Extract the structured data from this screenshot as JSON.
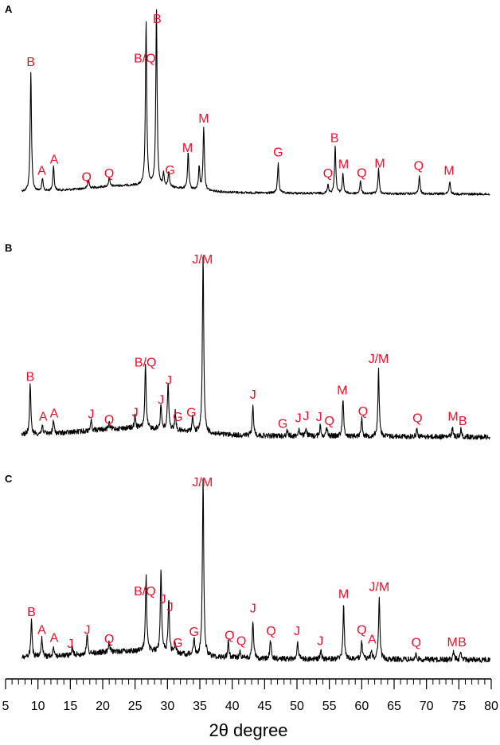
{
  "chart_data": {
    "type": "line",
    "xlabel": "2θ degree",
    "xlim": [
      5,
      80
    ],
    "x_ticks": [
      5,
      10,
      15,
      20,
      25,
      30,
      35,
      40,
      45,
      50,
      55,
      60,
      65,
      70,
      75,
      80
    ],
    "y_axis_shown": false,
    "panels": [
      {
        "panel": "A",
        "peaks": [
          {
            "x": 8.9,
            "h": 0.68
          },
          {
            "x": 10.7,
            "h": 0.07
          },
          {
            "x": 12.4,
            "h": 0.14
          },
          {
            "x": 17.8,
            "h": 0.05
          },
          {
            "x": 21.0,
            "h": 0.05
          },
          {
            "x": 26.7,
            "h": 0.93
          },
          {
            "x": 28.3,
            "h": 1.0
          },
          {
            "x": 29.4,
            "h": 0.07
          },
          {
            "x": 30.2,
            "h": 0.09
          },
          {
            "x": 33.2,
            "h": 0.21
          },
          {
            "x": 34.9,
            "h": 0.13
          },
          {
            "x": 35.6,
            "h": 0.36
          },
          {
            "x": 47.1,
            "h": 0.17
          },
          {
            "x": 54.8,
            "h": 0.05
          },
          {
            "x": 55.9,
            "h": 0.27
          },
          {
            "x": 57.1,
            "h": 0.11
          },
          {
            "x": 59.8,
            "h": 0.07
          },
          {
            "x": 62.6,
            "h": 0.14
          },
          {
            "x": 68.9,
            "h": 0.1
          },
          {
            "x": 73.6,
            "h": 0.07
          }
        ],
        "labels": [
          {
            "text": "B",
            "x": 8.9
          },
          {
            "text": "A",
            "x": 10.6
          },
          {
            "text": "A",
            "x": 12.5
          },
          {
            "text": "Q",
            "x": 17.5
          },
          {
            "text": "Q",
            "x": 21.0
          },
          {
            "text": "B/Q",
            "x": 26.5
          },
          {
            "text": "B",
            "x": 28.4
          },
          {
            "text": "G",
            "x": 30.4
          },
          {
            "text": "M",
            "x": 33.1
          },
          {
            "text": "M",
            "x": 35.6
          },
          {
            "text": "G",
            "x": 47.1
          },
          {
            "text": "B",
            "x": 55.8
          },
          {
            "text": "Q",
            "x": 54.8
          },
          {
            "text": "M",
            "x": 57.2
          },
          {
            "text": "Q",
            "x": 60.0
          },
          {
            "text": "M",
            "x": 62.8
          },
          {
            "text": "Q",
            "x": 68.8
          },
          {
            "text": "M",
            "x": 73.5
          }
        ]
      },
      {
        "panel": "B",
        "peaks": [
          {
            "x": 8.8,
            "h": 0.27
          },
          {
            "x": 10.7,
            "h": 0.05
          },
          {
            "x": 12.4,
            "h": 0.07
          },
          {
            "x": 18.2,
            "h": 0.06
          },
          {
            "x": 21.0,
            "h": 0.03
          },
          {
            "x": 25.0,
            "h": 0.07
          },
          {
            "x": 26.6,
            "h": 0.35
          },
          {
            "x": 29.0,
            "h": 0.14
          },
          {
            "x": 30.1,
            "h": 0.27
          },
          {
            "x": 31.2,
            "h": 0.1
          },
          {
            "x": 33.9,
            "h": 0.09
          },
          {
            "x": 35.5,
            "h": 1.0
          },
          {
            "x": 43.2,
            "h": 0.17
          },
          {
            "x": 48.5,
            "h": 0.03
          },
          {
            "x": 50.3,
            "h": 0.04
          },
          {
            "x": 51.4,
            "h": 0.05
          },
          {
            "x": 53.6,
            "h": 0.06
          },
          {
            "x": 54.6,
            "h": 0.05
          },
          {
            "x": 57.1,
            "h": 0.21
          },
          {
            "x": 60.0,
            "h": 0.1
          },
          {
            "x": 62.6,
            "h": 0.37
          },
          {
            "x": 68.5,
            "h": 0.04
          },
          {
            "x": 74.0,
            "h": 0.05
          },
          {
            "x": 75.3,
            "h": 0.04
          }
        ],
        "labels": [
          {
            "text": "B",
            "x": 8.8
          },
          {
            "text": "A",
            "x": 10.8
          },
          {
            "text": "A",
            "x": 12.5
          },
          {
            "text": "J",
            "x": 18.2
          },
          {
            "text": "Q",
            "x": 21.0
          },
          {
            "text": "J",
            "x": 25.0
          },
          {
            "text": "B/Q",
            "x": 26.6
          },
          {
            "text": "J",
            "x": 29.0
          },
          {
            "text": "J",
            "x": 30.2
          },
          {
            "text": "G",
            "x": 31.6
          },
          {
            "text": "G",
            "x": 33.7
          },
          {
            "text": "J/M",
            "x": 35.4
          },
          {
            "text": "J",
            "x": 43.2
          },
          {
            "text": "G",
            "x": 47.8
          },
          {
            "text": "J",
            "x": 50.2
          },
          {
            "text": "J",
            "x": 51.4
          },
          {
            "text": "J",
            "x": 53.4
          },
          {
            "text": "Q",
            "x": 55.0
          },
          {
            "text": "M",
            "x": 57.0
          },
          {
            "text": "Q",
            "x": 60.2
          },
          {
            "text": "J/M",
            "x": 62.6
          },
          {
            "text": "Q",
            "x": 68.6
          },
          {
            "text": "M",
            "x": 74.1
          },
          {
            "text": "B",
            "x": 75.6
          }
        ]
      },
      {
        "panel": "C",
        "peaks": [
          {
            "x": 9.0,
            "h": 0.2
          },
          {
            "x": 10.6,
            "h": 0.1
          },
          {
            "x": 12.4,
            "h": 0.06
          },
          {
            "x": 15.3,
            "h": 0.04
          },
          {
            "x": 17.6,
            "h": 0.1
          },
          {
            "x": 21.0,
            "h": 0.05
          },
          {
            "x": 26.7,
            "h": 0.42
          },
          {
            "x": 29.0,
            "h": 0.47
          },
          {
            "x": 30.2,
            "h": 0.3
          },
          {
            "x": 31.2,
            "h": 0.06
          },
          {
            "x": 34.1,
            "h": 0.09
          },
          {
            "x": 35.5,
            "h": 1.0
          },
          {
            "x": 39.4,
            "h": 0.09
          },
          {
            "x": 41.2,
            "h": 0.05
          },
          {
            "x": 43.2,
            "h": 0.22
          },
          {
            "x": 45.9,
            "h": 0.1
          },
          {
            "x": 50.1,
            "h": 0.1
          },
          {
            "x": 53.7,
            "h": 0.04
          },
          {
            "x": 57.2,
            "h": 0.3
          },
          {
            "x": 60.0,
            "h": 0.1
          },
          {
            "x": 61.5,
            "h": 0.05
          },
          {
            "x": 62.7,
            "h": 0.34
          },
          {
            "x": 68.4,
            "h": 0.03
          },
          {
            "x": 74.2,
            "h": 0.04
          },
          {
            "x": 75.3,
            "h": 0.04
          }
        ],
        "labels": [
          {
            "text": "B",
            "x": 9.0
          },
          {
            "text": "A",
            "x": 10.6
          },
          {
            "text": "A",
            "x": 12.5
          },
          {
            "text": "J",
            "x": 15.0
          },
          {
            "text": "J",
            "x": 17.6
          },
          {
            "text": "Q",
            "x": 21.0
          },
          {
            "text": "B/Q",
            "x": 26.5
          },
          {
            "text": "J",
            "x": 29.3
          },
          {
            "text": "J",
            "x": 30.4
          },
          {
            "text": "G",
            "x": 31.6
          },
          {
            "text": "G",
            "x": 34.1
          },
          {
            "text": "J/M",
            "x": 35.4
          },
          {
            "text": "Q",
            "x": 39.6
          },
          {
            "text": "Q",
            "x": 41.4
          },
          {
            "text": "J",
            "x": 43.2
          },
          {
            "text": "Q",
            "x": 46.0
          },
          {
            "text": "J",
            "x": 50.0
          },
          {
            "text": "J",
            "x": 53.6
          },
          {
            "text": "M",
            "x": 57.2
          },
          {
            "text": "Q",
            "x": 60.0
          },
          {
            "text": "A",
            "x": 61.6
          },
          {
            "text": "J/M",
            "x": 62.7
          },
          {
            "text": "Q",
            "x": 68.4
          },
          {
            "text": "M",
            "x": 74.0
          },
          {
            "text": "B",
            "x": 75.5
          }
        ]
      }
    ]
  }
}
